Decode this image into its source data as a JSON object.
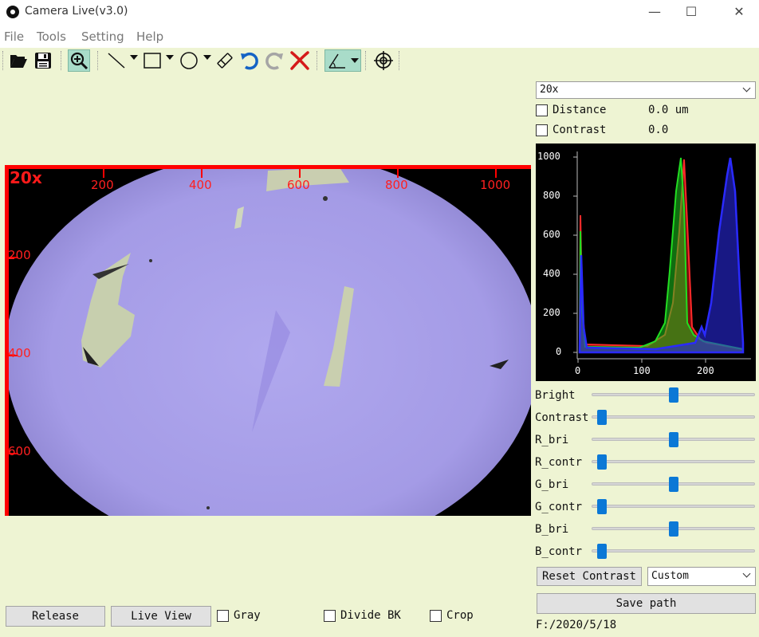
{
  "window": {
    "title": "Camera Live(v3.0)",
    "minimize": "—",
    "maximize": "☐",
    "close": "✕"
  },
  "menu": [
    "File",
    "Tools",
    "Setting",
    "Help"
  ],
  "toolbar": {
    "icons": [
      "open-folder-icon",
      "save-icon",
      "zoom-in-icon",
      "line-tool-icon",
      "rectangle-tool-icon",
      "ellipse-tool-icon",
      "eraser-icon",
      "undo-icon",
      "redo-icon",
      "clear-icon",
      "angle-tool-icon",
      "crosshair-icon"
    ],
    "active": [
      "zoom-in-icon",
      "angle-tool-icon"
    ]
  },
  "camera": {
    "magnification_label": "20x",
    "x_ticks": [
      "200",
      "400",
      "600",
      "800",
      "1000"
    ],
    "y_ticks": [
      "200",
      "400",
      "600"
    ]
  },
  "panel": {
    "objective": "20x",
    "distance_label": "Distance",
    "distance_value": "0.0 um",
    "contrast_label": "Contrast",
    "contrast_value": "0.0",
    "histogram_y_ticks": [
      "1000",
      "800",
      "600",
      "400",
      "200",
      "0"
    ],
    "histogram_x_ticks": [
      "0",
      "100",
      "200"
    ],
    "sliders": [
      {
        "label": "Bright",
        "level": 0.5
      },
      {
        "label": "Contrast",
        "level": 0.0
      },
      {
        "label": "R_bri",
        "level": 0.5
      },
      {
        "label": "R_contr",
        "level": 0.0
      },
      {
        "label": "G_bri",
        "level": 0.5
      },
      {
        "label": "G_contr",
        "level": 0.0
      },
      {
        "label": "B_bri",
        "level": 0.5
      },
      {
        "label": "B_contr",
        "level": 0.0
      }
    ],
    "reset_contrast": "Reset Contrast",
    "mode": "Custom",
    "save_path": "Save path",
    "path": "F:/2020/5/18"
  },
  "bottom": {
    "release": "Release",
    "live_view": "Live View",
    "gray": "Gray",
    "divide_bk": "Divide BK",
    "crop": "Crop"
  },
  "colors": {
    "background": "#eef4d3",
    "ruler": "#ff0000",
    "slider_handle": "#0b78d6",
    "field": "#a79ee8"
  }
}
